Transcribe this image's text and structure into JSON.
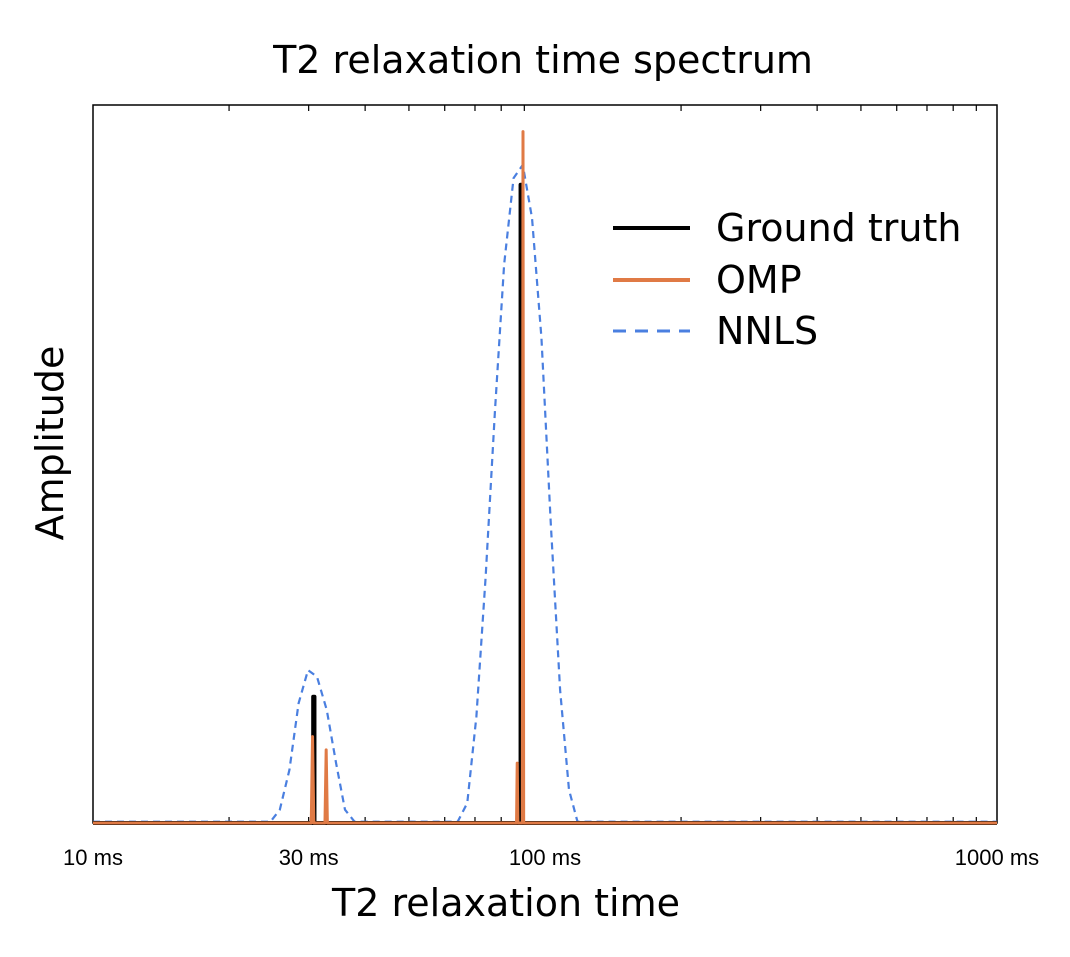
{
  "chart_data": {
    "type": "line",
    "title": "T2 relaxation time spectrum",
    "xlabel": "T2 relaxation time",
    "ylabel": "Amplitude",
    "xscale": "log",
    "xlim": [
      10,
      1000
    ],
    "ylim": [
      0,
      1.08
    ],
    "xticks": [
      {
        "value": 10,
        "label": "10 ms"
      },
      {
        "value": 30,
        "label": "30 ms"
      },
      {
        "value": 100,
        "label": "100 ms"
      },
      {
        "value": 1000,
        "label": "1000 ms"
      }
    ],
    "minor_ticks": [
      20,
      30,
      40,
      50,
      60,
      70,
      80,
      90,
      200,
      300,
      400,
      500,
      600,
      700,
      800,
      900
    ],
    "legend_position": "top-right",
    "grid": false,
    "series": [
      {
        "name": "Ground truth",
        "style": "solid",
        "color": "#000000",
        "points": [
          {
            "x": 10,
            "y": 0
          },
          {
            "x": 30.7,
            "y": 0
          },
          {
            "x": 30.7,
            "y": 0.19
          },
          {
            "x": 30.9,
            "y": 0.19
          },
          {
            "x": 30.9,
            "y": 0
          },
          {
            "x": 88.3,
            "y": 0
          },
          {
            "x": 88.3,
            "y": 0.96
          },
          {
            "x": 88.6,
            "y": 0.96
          },
          {
            "x": 88.6,
            "y": 0
          },
          {
            "x": 1000,
            "y": 0
          }
        ]
      },
      {
        "name": "OMP",
        "style": "solid",
        "color": "#E07A45",
        "points": [
          {
            "x": 10,
            "y": 0
          },
          {
            "x": 30.4,
            "y": 0
          },
          {
            "x": 30.6,
            "y": 0.13
          },
          {
            "x": 30.8,
            "y": 0
          },
          {
            "x": 32.6,
            "y": 0
          },
          {
            "x": 32.8,
            "y": 0.11
          },
          {
            "x": 33.0,
            "y": 0
          },
          {
            "x": 86.5,
            "y": 0
          },
          {
            "x": 86.8,
            "y": 0.09
          },
          {
            "x": 87.1,
            "y": 0
          },
          {
            "x": 89.1,
            "y": 0
          },
          {
            "x": 89.4,
            "y": 1.04
          },
          {
            "x": 89.7,
            "y": 0
          },
          {
            "x": 1000,
            "y": 0
          }
        ]
      },
      {
        "name": "NNLS",
        "style": "dashed",
        "color": "#4A7FE0",
        "points": [
          {
            "x": 10,
            "y": 0.002
          },
          {
            "x": 24.7,
            "y": 0.002
          },
          {
            "x": 25.9,
            "y": 0.02
          },
          {
            "x": 27.2,
            "y": 0.08
          },
          {
            "x": 28.5,
            "y": 0.18
          },
          {
            "x": 29.9,
            "y": 0.23
          },
          {
            "x": 31.3,
            "y": 0.22
          },
          {
            "x": 32.9,
            "y": 0.17
          },
          {
            "x": 34.5,
            "y": 0.09
          },
          {
            "x": 36.1,
            "y": 0.02
          },
          {
            "x": 37.9,
            "y": 0.002
          },
          {
            "x": 64.1,
            "y": 0.002
          },
          {
            "x": 67.3,
            "y": 0.03
          },
          {
            "x": 70.5,
            "y": 0.16
          },
          {
            "x": 73.9,
            "y": 0.37
          },
          {
            "x": 77.5,
            "y": 0.62
          },
          {
            "x": 81.2,
            "y": 0.84
          },
          {
            "x": 85.2,
            "y": 0.97
          },
          {
            "x": 89.3,
            "y": 0.99
          },
          {
            "x": 93.6,
            "y": 0.91
          },
          {
            "x": 98.2,
            "y": 0.73
          },
          {
            "x": 103,
            "y": 0.45
          },
          {
            "x": 108,
            "y": 0.2
          },
          {
            "x": 113,
            "y": 0.05
          },
          {
            "x": 118,
            "y": 0.002
          },
          {
            "x": 1000,
            "y": 0.002
          }
        ]
      }
    ]
  }
}
